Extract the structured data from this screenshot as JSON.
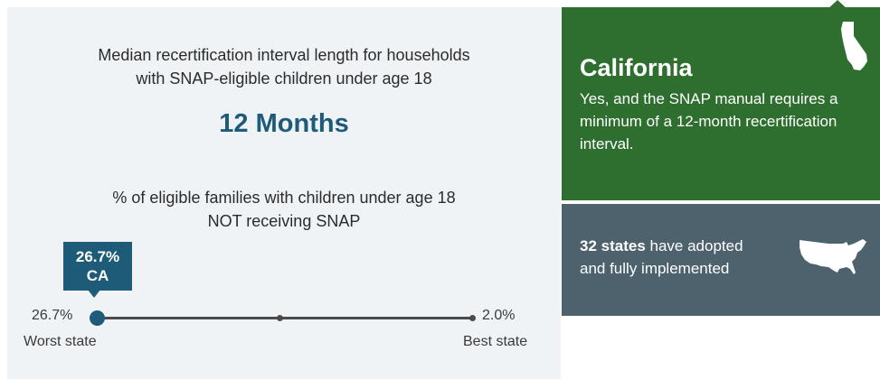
{
  "recert_interval": {
    "caption_line1": "Median recertification interval length for households",
    "caption_line2": "with SNAP-eligible children under age 18",
    "value": "12 Months"
  },
  "snap_gap": {
    "caption_line1": "% of eligible families with children under age 18",
    "caption_line2": "NOT receiving SNAP",
    "badge_value": "26.7%",
    "badge_state": "CA",
    "ca_fraction_of_scale": 0.0,
    "worst_value": "26.7%",
    "worst_label": "Worst state",
    "best_value": "2.0%",
    "best_label": "Best state"
  },
  "state_panel": {
    "name": "California",
    "description": "Yes, and the SNAP manual requires a minimum of a 12-month recertification interval.",
    "icon": "california-shape-icon"
  },
  "states_adopted": {
    "count_text": "32 states",
    "text_line1_rest": " have adopted",
    "text_line2": "and fully implemented",
    "icon": "usa-map-icon"
  },
  "colors": {
    "left_panel_bg": "#f0f3f5",
    "accent_blue": "#1d5b78",
    "state_panel_green": "#2e6e2f",
    "states_panel_slate": "#4d626c"
  }
}
